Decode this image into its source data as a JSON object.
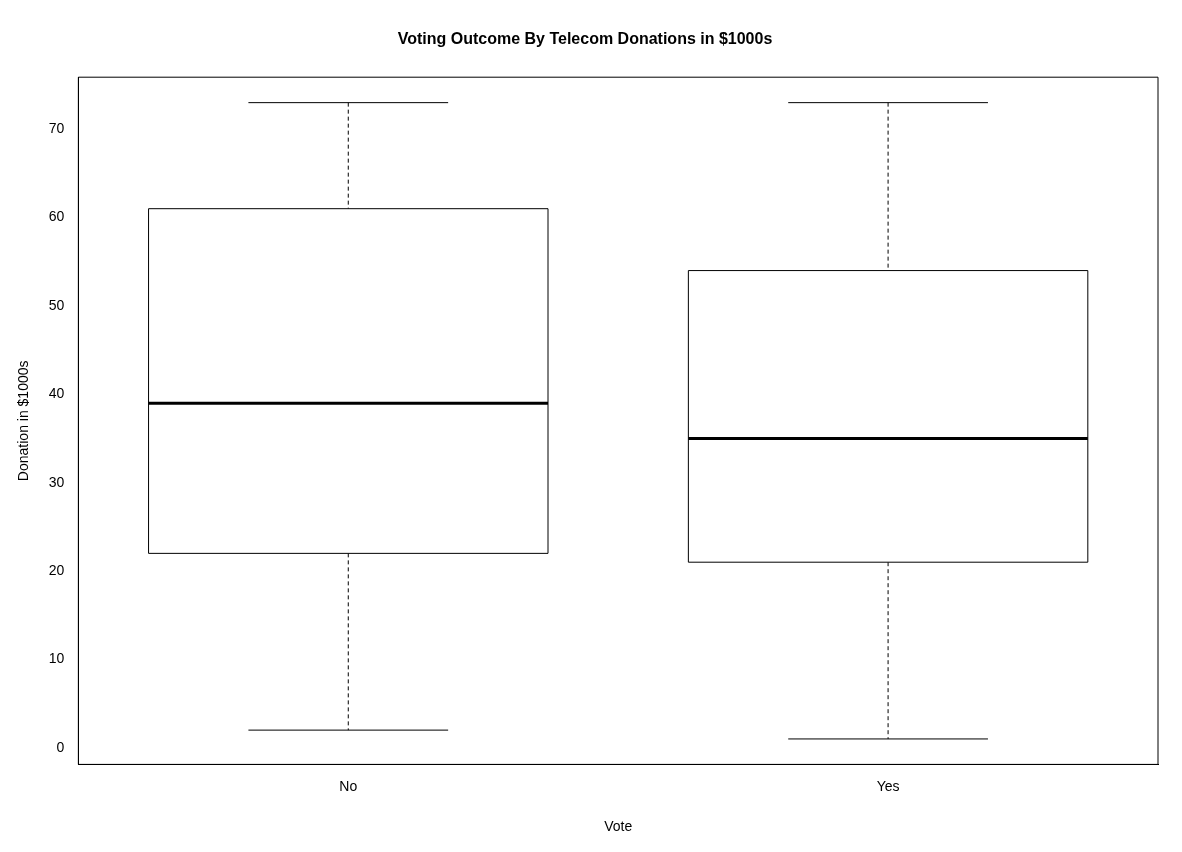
{
  "chart_data": {
    "type": "box",
    "title": "Voting Outcome By Telecom Donations in $1000s",
    "xlabel": "Vote",
    "ylabel": "Donation in $1000s",
    "categories": [
      "No",
      "Yes"
    ],
    "boxes": [
      {
        "low": 2,
        "q1": 22,
        "median": 39,
        "q3": 61,
        "high": 73
      },
      {
        "low": 1,
        "q1": 21,
        "median": 35,
        "q3": 54,
        "high": 73
      }
    ],
    "ylim": [
      -1.88,
      75.88
    ],
    "yticks": [
      0,
      10,
      20,
      30,
      40,
      50,
      60,
      70
    ],
    "grid": false,
    "legend": false
  }
}
